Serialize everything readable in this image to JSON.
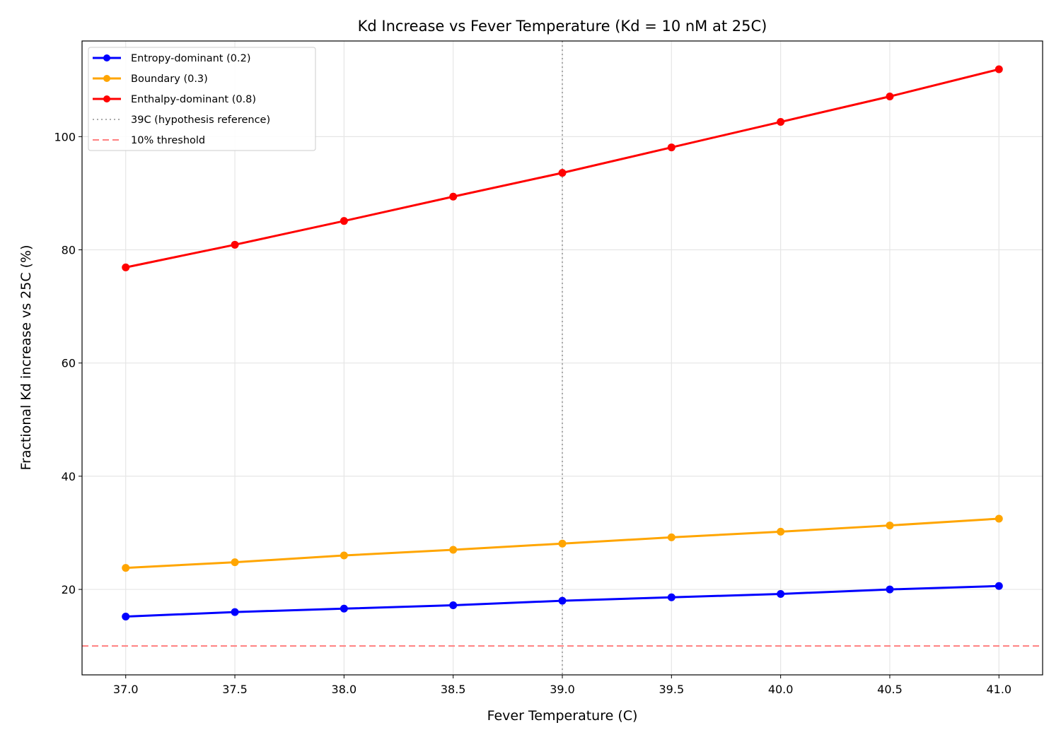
{
  "chart_data": {
    "type": "line",
    "title": "Kd Increase vs Fever Temperature (Kd = 10 nM at 25C)",
    "xlabel": "Fever Temperature (C)",
    "ylabel": "Fractional Kd increase vs 25C (%)",
    "xlim": [
      36.8,
      41.2
    ],
    "ylim": [
      4.9,
      116.9
    ],
    "xticks": [
      "37.0",
      "37.5",
      "38.0",
      "38.5",
      "39.0",
      "39.5",
      "40.0",
      "40.5",
      "41.0"
    ],
    "yticks": [
      "20",
      "40",
      "60",
      "80",
      "100"
    ],
    "grid": true,
    "legend_position": "top-left",
    "x": [
      37.0,
      37.5,
      38.0,
      38.5,
      39.0,
      39.5,
      40.0,
      40.5,
      41.0
    ],
    "series": [
      {
        "name": "Entropy-dominant (0.2)",
        "color": "#0000ff",
        "values": [
          15.2,
          16.0,
          16.6,
          17.2,
          18.0,
          18.6,
          19.2,
          20.0,
          20.6
        ]
      },
      {
        "name": "Boundary (0.3)",
        "color": "#ffa500",
        "values": [
          23.8,
          24.8,
          26.0,
          27.0,
          28.1,
          29.2,
          30.2,
          31.3,
          32.5
        ]
      },
      {
        "name": "Enthalpy-dominant (0.8)",
        "color": "#ff0000",
        "values": [
          76.9,
          80.9,
          85.1,
          89.4,
          93.6,
          98.1,
          102.6,
          107.1,
          111.9
        ]
      }
    ],
    "reference_lines": [
      {
        "name": "39C (hypothesis reference)",
        "orientation": "vertical",
        "value": 39.0,
        "color": "#aaaaaa",
        "style": "dotted"
      },
      {
        "name": "10% threshold",
        "orientation": "horizontal",
        "value": 10,
        "color": "#ff7f7f",
        "style": "dashed"
      }
    ]
  }
}
